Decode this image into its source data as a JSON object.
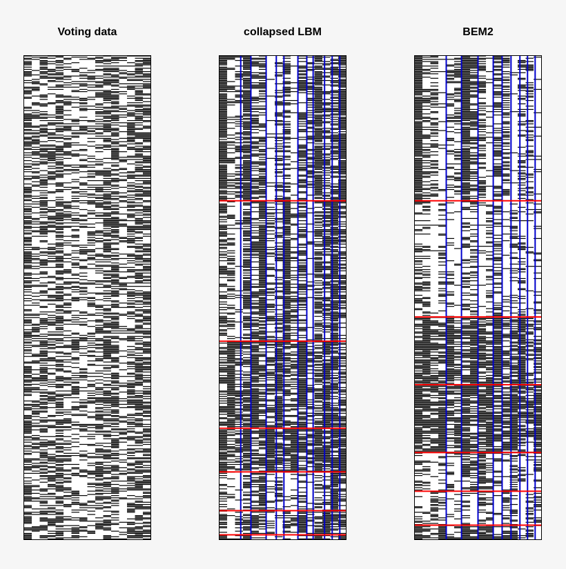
{
  "chart_data": [
    {
      "type": "heatmap",
      "title": "Voting data",
      "n_rows": 435,
      "n_cols": 16,
      "row_breaks": [],
      "col_breaks": [],
      "fill_color": "#000000",
      "background_color": "#ffffff",
      "row_divider_color": "#ff0000",
      "col_divider_color": "#0000cc"
    },
    {
      "type": "heatmap",
      "title": "collapsed LBM",
      "n_rows": 435,
      "n_cols": 16,
      "row_breaks": [
        0.3,
        0.59,
        0.77,
        0.86,
        0.94,
        0.99
      ],
      "col_breaks": [
        0.17,
        0.25,
        0.37,
        0.45,
        0.51,
        0.62,
        0.69,
        0.74,
        0.83,
        0.89,
        0.95
      ],
      "fill_color": "#000000",
      "background_color": "#ffffff",
      "row_divider_color": "#ff0000",
      "col_divider_color": "#0000cc"
    },
    {
      "type": "heatmap",
      "title": "BEM2",
      "n_rows": 435,
      "n_cols": 16,
      "row_breaks": [
        0.3,
        0.54,
        0.68,
        0.82,
        0.9,
        0.97
      ],
      "col_breaks": [
        0.25,
        0.37,
        0.5,
        0.62,
        0.69,
        0.76,
        0.83,
        0.89,
        0.95
      ],
      "fill_color": "#000000",
      "background_color": "#ffffff",
      "row_divider_color": "#ff0000",
      "col_divider_color": "#0000cc"
    }
  ]
}
